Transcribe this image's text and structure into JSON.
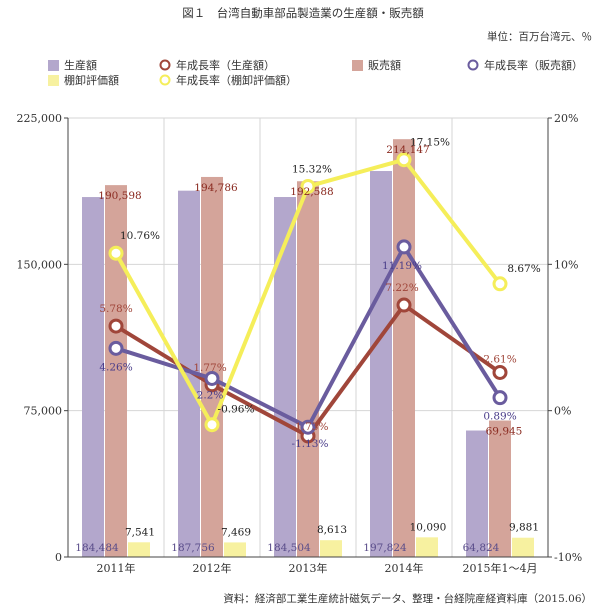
{
  "title": "図１　台湾自動車部品製造業の生産額・販売額",
  "unit_label": "単位：百万台湾元、％",
  "source": "資料：経済部工業生産統計磁気データ、整理・台経院産経資料庫（2015.06）",
  "colors": {
    "production": "#b3a7cc",
    "sales": "#d4a49a",
    "inventory": "#f7f1a0",
    "prod_growth": "#a0463a",
    "sales_growth": "#6a5c9e",
    "inv_growth": "#f5ee5a",
    "grid": "#d6d6d6"
  },
  "chart_data": {
    "type": "bar",
    "categories": [
      "2011年",
      "2012年",
      "2013年",
      "2014年",
      "2015年1～4月"
    ],
    "y_left": {
      "min": 0,
      "max": 225000,
      "ticks": [
        "0",
        "75,000",
        "150,000",
        "225,000"
      ],
      "tick_values": [
        0,
        75000,
        150000,
        225000
      ]
    },
    "y_right": {
      "min": -10,
      "max": 20,
      "ticks": [
        "-10%",
        "0%",
        "10%",
        "20%"
      ],
      "tick_values": [
        -10,
        0,
        10,
        20
      ]
    },
    "bar_series": [
      {
        "name": "生産額",
        "values": [
          184484,
          187756,
          184504,
          197824,
          64824
        ],
        "labels": [
          "184,484",
          "187,756",
          "184,504",
          "197,824",
          "64,824"
        ]
      },
      {
        "name": "販売額",
        "values": [
          190598,
          194786,
          192588,
          214147,
          69945
        ],
        "labels": [
          "190,598",
          "194,786",
          "192,588",
          "214,147",
          "69,945"
        ]
      },
      {
        "name": "棚卸評価額",
        "values": [
          7541,
          7469,
          8613,
          10090,
          9881
        ],
        "labels": [
          "7,541",
          "7,469",
          "8,613",
          "10,090",
          "9,881"
        ]
      }
    ],
    "line_series": [
      {
        "name": "年成長率（生産額）",
        "values": [
          5.78,
          1.77,
          -1.73,
          7.22,
          2.61
        ],
        "labels": [
          "5.78%",
          "1.77%",
          "-1.73%",
          "7.22%",
          "2.61%"
        ]
      },
      {
        "name": "年成長率（販売額）",
        "values": [
          4.26,
          2.2,
          -1.13,
          11.19,
          0.89
        ],
        "labels": [
          "4.26%",
          "2.2%",
          "-1.13%",
          "11.19%",
          "0.89%"
        ]
      },
      {
        "name": "年成長率（棚卸評価額）",
        "values": [
          10.76,
          -0.96,
          15.32,
          17.15,
          8.67
        ],
        "labels": [
          "10.76%",
          "-0.96%",
          "15.32%",
          "17.15%",
          "8.67%"
        ]
      }
    ],
    "legend": [
      {
        "label": "生産額",
        "kind": "bar",
        "series": "production"
      },
      {
        "label": "年成長率（生産額）",
        "kind": "line",
        "series": "prod_growth"
      },
      {
        "label": "販売額",
        "kind": "bar",
        "series": "sales"
      },
      {
        "label": "年成長率（販売額）",
        "kind": "line",
        "series": "sales_growth"
      },
      {
        "label": "棚卸評価額",
        "kind": "bar",
        "series": "inventory"
      },
      {
        "label": "年成長率（棚卸評価額）",
        "kind": "line",
        "series": "inv_growth"
      }
    ],
    "legend_position": "top",
    "grid": true
  }
}
